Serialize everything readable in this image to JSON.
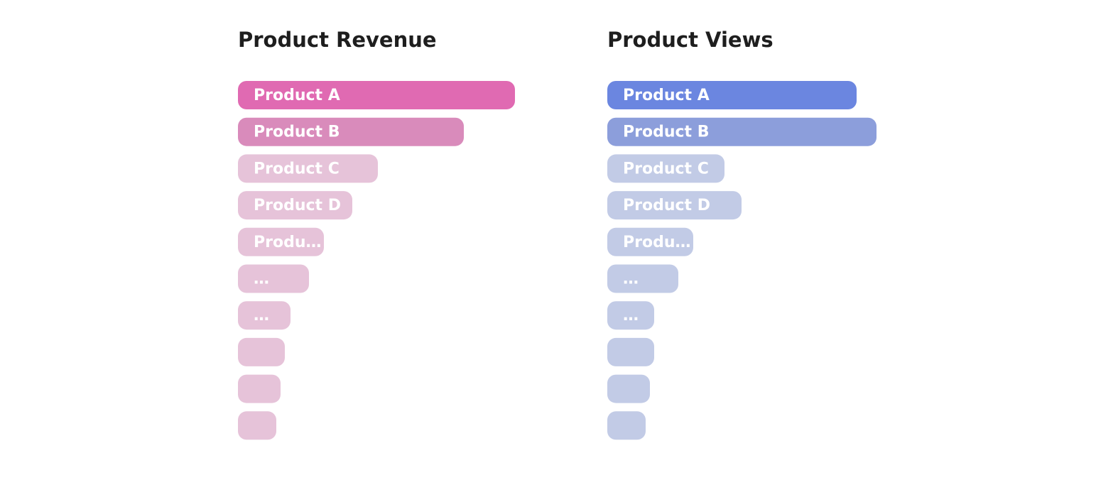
{
  "chart_data": [
    {
      "type": "hbar",
      "title": "Product Revenue",
      "categories": [
        "Product A",
        "Product B",
        "Product C",
        "Product D",
        "Produ…",
        "…",
        "…",
        null,
        null,
        null
      ],
      "values": [
        390,
        318,
        197,
        161,
        121,
        100,
        74,
        66,
        60,
        54
      ],
      "colors": [
        "#e06ab2",
        "#d98bbb",
        "#e6c3d9",
        "#e6c3d9",
        "#e6c3d9",
        "#e6c3d9",
        "#e6c3d9",
        "#e6c3d9",
        "#e6c3d9",
        "#e6c3d9"
      ]
    },
    {
      "type": "hbar",
      "title": "Product Views",
      "categories": [
        "Product A",
        "Product B",
        "Product C",
        "Product D",
        "Produ…",
        "…",
        "…",
        null,
        null,
        null
      ],
      "values": [
        351,
        379,
        165,
        189,
        121,
        100,
        66,
        66,
        60,
        54
      ],
      "colors": [
        "#6b86e0",
        "#8c9edb",
        "#c2cbe6",
        "#c2cbe6",
        "#c2cbe6",
        "#c2cbe6",
        "#c2cbe6",
        "#c2cbe6",
        "#c2cbe6",
        "#c2cbe6"
      ]
    }
  ]
}
